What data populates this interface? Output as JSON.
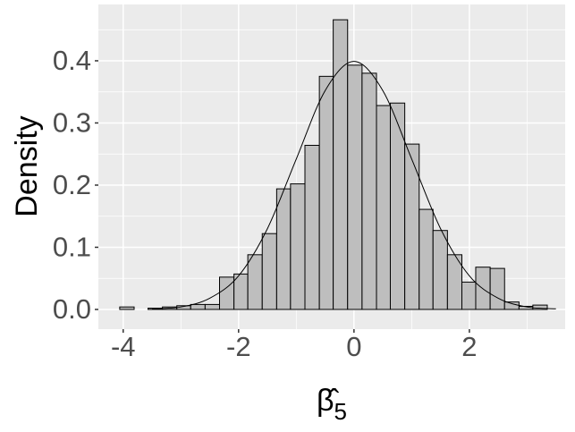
{
  "chart_data": {
    "type": "histogram",
    "ylabel": "Density",
    "xlabel": {
      "symbol": "β̂",
      "subscript": "5"
    },
    "bins": [
      -4.06,
      -3.81,
      -3.57,
      -3.32,
      -3.07,
      -2.83,
      -2.58,
      -2.33,
      -2.08,
      -1.84,
      -1.59,
      -1.34,
      -1.1,
      -0.85,
      -0.6,
      -0.36,
      -0.11,
      0.14,
      0.39,
      0.63,
      0.88,
      1.13,
      1.37,
      1.62,
      1.87,
      2.11,
      2.36,
      2.61,
      2.86,
      3.1,
      3.35
    ],
    "values": [
      0.004,
      0,
      0.002,
      0.004,
      0.006,
      0.008,
      0.008,
      0.052,
      0.057,
      0.088,
      0.122,
      0.194,
      0.202,
      0.264,
      0.375,
      0.466,
      0.393,
      0.38,
      0.328,
      0.332,
      0.266,
      0.161,
      0.127,
      0.088,
      0.044,
      0.068,
      0.066,
      0.012,
      0.005,
      0.007
    ],
    "color": "#bebebe",
    "edge_color": "#000000",
    "curve": {
      "x": [
        -3.5,
        -3,
        -2.5,
        -2,
        -1.5,
        -1,
        -0.5,
        0,
        0.5,
        1,
        1.5,
        2,
        2.5,
        3,
        3.5
      ],
      "y": [
        0.001,
        0.004,
        0.018,
        0.054,
        0.13,
        0.242,
        0.352,
        0.399,
        0.352,
        0.242,
        0.13,
        0.054,
        0.018,
        0.004,
        0.001
      ]
    },
    "xlim": [
      -4.43,
      3.66
    ],
    "ylim": [
      -0.0317,
      0.4906
    ],
    "xticks": [
      -4,
      -2,
      0,
      2
    ],
    "yticks": [
      {
        "value": 0,
        "label": "0.0"
      },
      0.1,
      0.2,
      0.3,
      0.4
    ],
    "grid": true
  }
}
